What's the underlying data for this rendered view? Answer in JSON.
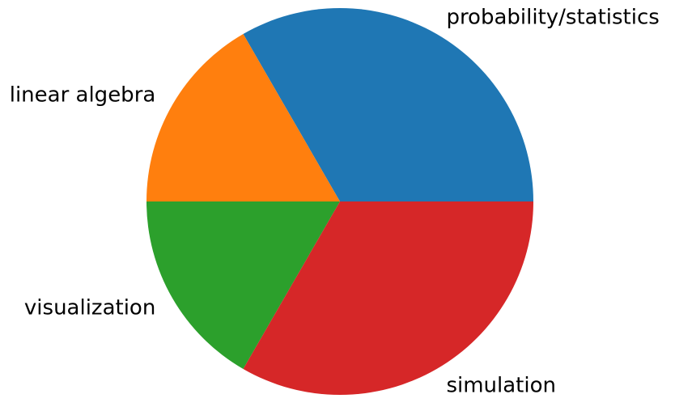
{
  "chart_data": {
    "type": "pie",
    "title": "",
    "start_angle_deg": 0,
    "direction": "counterclockwise",
    "slices": [
      {
        "label": "probability/statistics",
        "value": 2,
        "color": "#1f77b4"
      },
      {
        "label": "linear algebra",
        "value": 1,
        "color": "#ff7f0e"
      },
      {
        "label": "visualization",
        "value": 1,
        "color": "#2ca02c"
      },
      {
        "label": "simulation",
        "value": 2,
        "color": "#d62728"
      }
    ]
  }
}
